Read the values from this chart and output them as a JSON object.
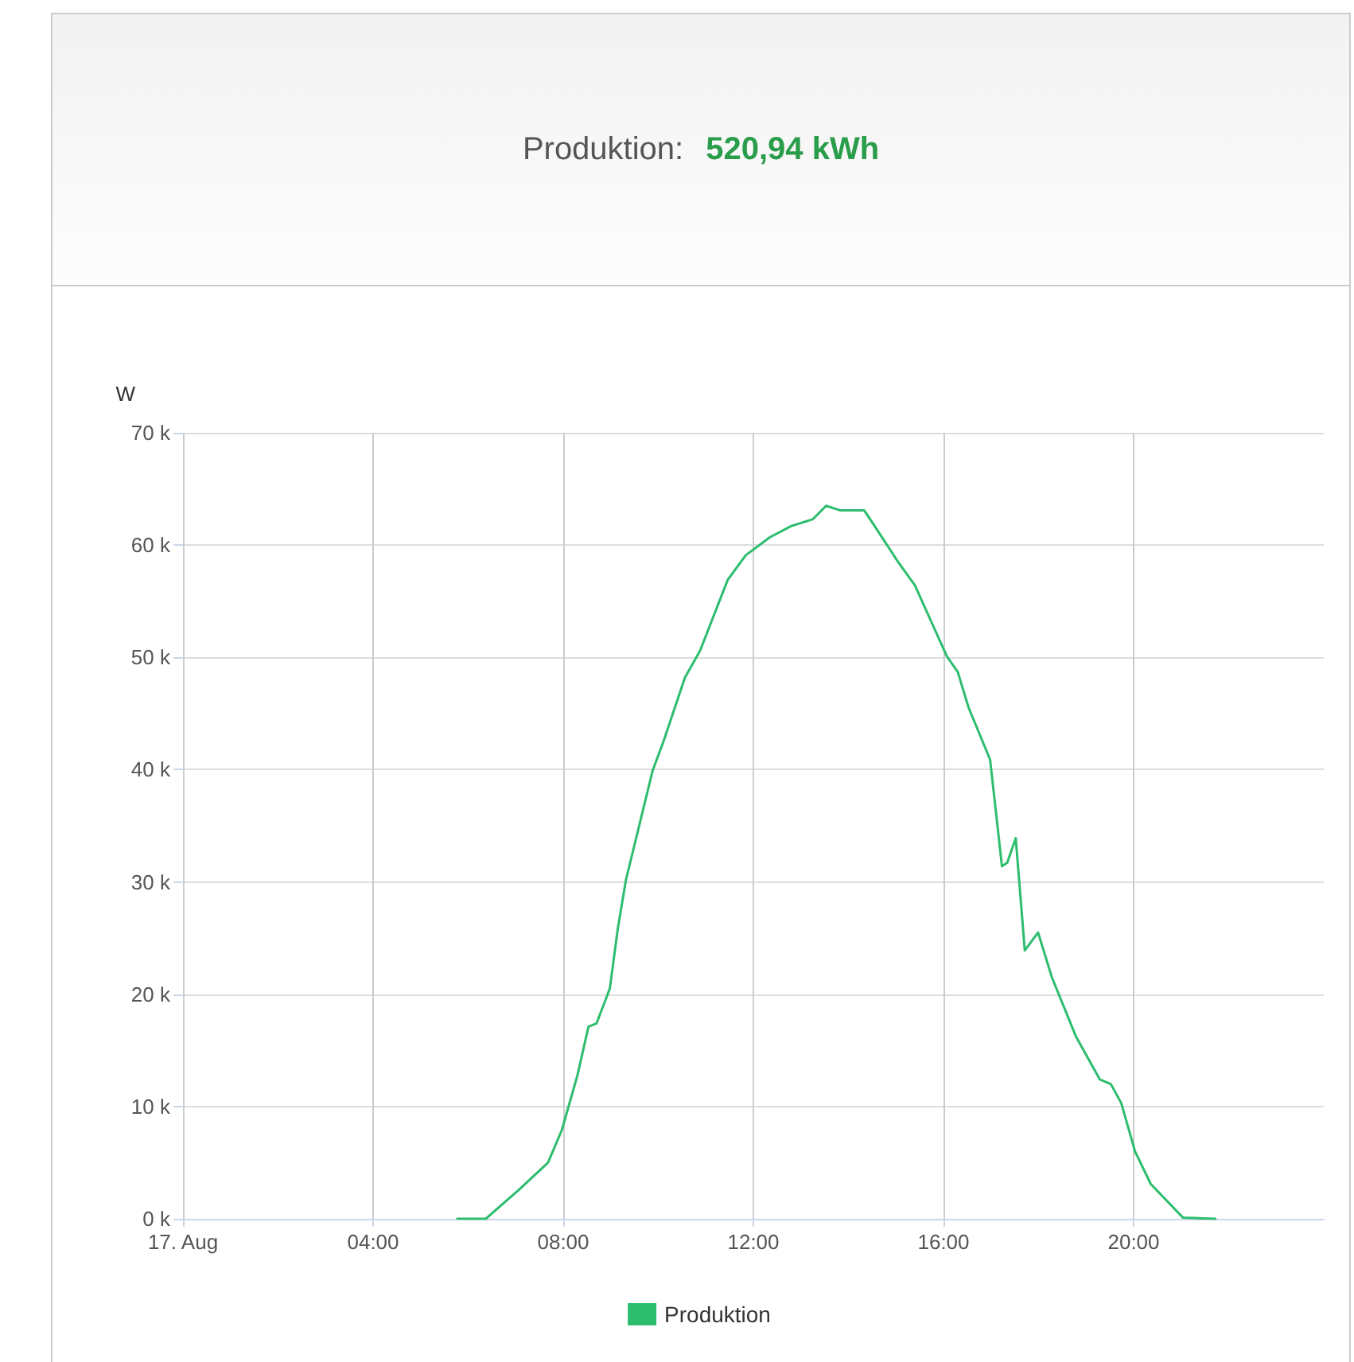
{
  "chart_data": {
    "type": "line",
    "title": "Produktion:",
    "subtitle": "520,94 kWh",
    "ylabel": "W",
    "xlim": [
      0,
      24
    ],
    "xticks": [
      {
        "value": 0,
        "label": "17. Aug"
      },
      {
        "value": 4,
        "label": "04:00"
      },
      {
        "value": 8,
        "label": "08:00"
      },
      {
        "value": 12,
        "label": "12:00"
      },
      {
        "value": 16,
        "label": "16:00"
      },
      {
        "value": 20,
        "label": "20:00"
      }
    ],
    "ylim": [
      0,
      70000
    ],
    "yticks": [
      {
        "value": 0,
        "label": "0 k"
      },
      {
        "value": 10000,
        "label": "10 k"
      },
      {
        "value": 20000,
        "label": "20 k"
      },
      {
        "value": 30000,
        "label": "30 k"
      },
      {
        "value": 40000,
        "label": "40 k"
      },
      {
        "value": 50000,
        "label": "50 k"
      },
      {
        "value": 60000,
        "label": "60 k"
      },
      {
        "value": 70000,
        "label": "70 k"
      }
    ],
    "grid": true,
    "legend": "bottom",
    "marker": "none",
    "line_style": "solid",
    "series": [
      {
        "name": "Produktion",
        "color": "#2dbd6e",
        "x": [
          5.77,
          6.37,
          7.07,
          7.68,
          7.97,
          8.3,
          8.53,
          8.7,
          8.98,
          9.15,
          9.32,
          9.88,
          10.1,
          10.56,
          10.88,
          11.46,
          11.84,
          12.35,
          12.8,
          13.25,
          13.53,
          13.82,
          14.33,
          14.55,
          15.06,
          15.4,
          16.07,
          16.3,
          16.53,
          16.98,
          17.23,
          17.34,
          17.52,
          17.71,
          17.99,
          18.28,
          18.79,
          19.29,
          19.52,
          19.74,
          20.03,
          20.36,
          21.04,
          21.72
        ],
        "values": [
          0,
          0,
          2600,
          5000,
          7900,
          12800,
          17100,
          17400,
          20500,
          25900,
          30200,
          39900,
          42400,
          48200,
          50600,
          56900,
          59100,
          60700,
          61700,
          62300,
          63500,
          63100,
          63100,
          61700,
          58400,
          56400,
          50100,
          48700,
          45500,
          40900,
          31400,
          31700,
          33900,
          23900,
          25500,
          21500,
          16200,
          12400,
          12000,
          10300,
          6000,
          3100,
          100,
          0
        ]
      }
    ]
  }
}
